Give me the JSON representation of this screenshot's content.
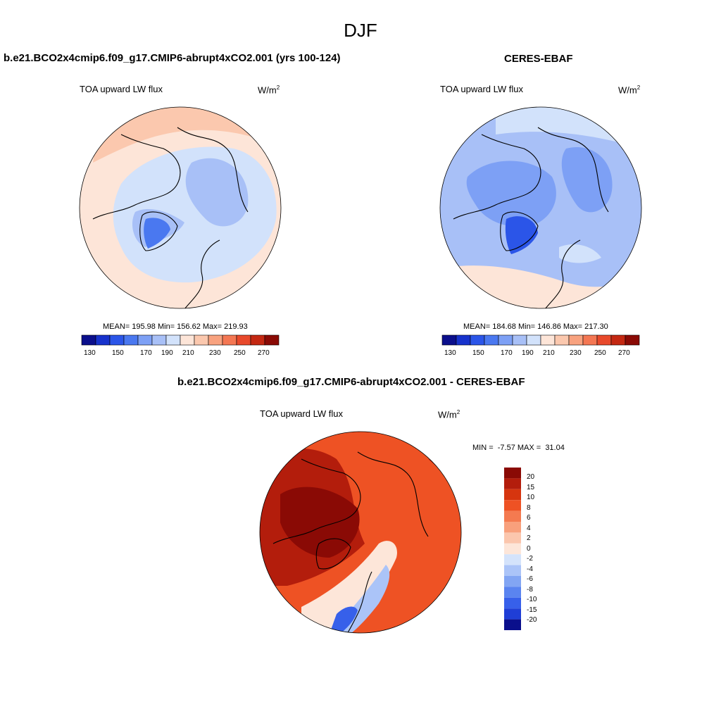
{
  "page": {
    "season_title": "DJF"
  },
  "panels": [
    {
      "case_title": "b.e21.BCO2x4cmip6.f09_g17.CMIP6-abrupt4xCO2.001 (yrs 100-124)",
      "variable": "TOA upward LW flux",
      "units_base": "W/m",
      "units_exp": "2",
      "stats": "MEAN= 195.98  Min= 156.62  Max= 219.93",
      "colorbar_ticks": [
        "130",
        "150",
        "170",
        "190",
        "210",
        "230",
        "250",
        "270"
      ]
    },
    {
      "case_title": "CERES-EBAF",
      "variable": "TOA upward LW flux",
      "units_base": "W/m",
      "units_exp": "2",
      "stats": "MEAN= 184.68  Min= 146.86  Max= 217.30",
      "colorbar_ticks": [
        "130",
        "150",
        "170",
        "190",
        "210",
        "230",
        "250",
        "270"
      ]
    }
  ],
  "diff_panel": {
    "case_title": "b.e21.BCO2x4cmip6.f09_g17.CMIP6-abrupt4xCO2.001 - CERES-EBAF",
    "variable": "TOA upward LW flux",
    "units_base": "W/m",
    "units_exp": "2",
    "minmax": "MIN =  -7.57 MAX =  31.04",
    "colorbar_ticks": [
      "20",
      "15",
      "10",
      "8",
      "6",
      "4",
      "2",
      "0",
      "-2",
      "-4",
      "-6",
      "-8",
      "-10",
      "-15",
      "-20"
    ]
  },
  "colors": {
    "abs_scale": [
      "#0b0f8c",
      "#1732cc",
      "#2b55e8",
      "#4a78f0",
      "#7da0f5",
      "#a8c0f7",
      "#d2e2fb",
      "#fde5d8",
      "#fbc8ae",
      "#f8a27f",
      "#f47753",
      "#e8492b",
      "#c42812",
      "#8a0a05"
    ],
    "diff_scale": [
      "#8a0a05",
      "#b31d0c",
      "#d6350f",
      "#ee5224",
      "#f47a50",
      "#f8a07c",
      "#fbc6ad",
      "#fde6d9",
      "#d4e3fb",
      "#abc4f8",
      "#82a5f3",
      "#5a84f0",
      "#3760ea",
      "#1f3ed6",
      "#0a0f8c"
    ]
  }
}
